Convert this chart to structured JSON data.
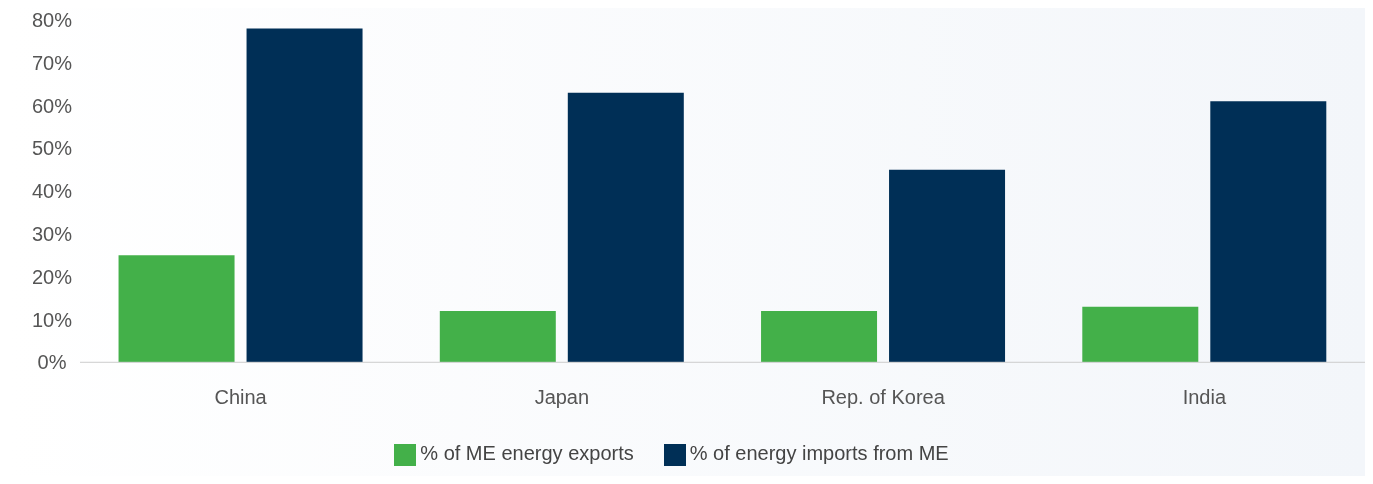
{
  "chart_data": {
    "type": "bar",
    "categories": [
      "China",
      "Japan",
      "Rep. of Korea",
      "India"
    ],
    "series": [
      {
        "name": "% of ME energy exports",
        "color": "#43b049",
        "values": [
          25,
          12,
          12,
          13
        ]
      },
      {
        "name": "% of energy imports from ME",
        "color": "#002f56",
        "values": [
          78,
          63,
          45,
          61
        ]
      }
    ],
    "ylim": [
      0,
      80
    ],
    "yticks": [
      {
        "value": 0,
        "label": "0%"
      },
      {
        "value": 10,
        "label": "10%"
      },
      {
        "value": 20,
        "label": "20%"
      },
      {
        "value": 30,
        "label": "30%"
      },
      {
        "value": 40,
        "label": "40%"
      },
      {
        "value": 50,
        "label": "50%"
      },
      {
        "value": 60,
        "label": "60%"
      },
      {
        "value": 70,
        "label": "70%"
      },
      {
        "value": 80,
        "label": "80%"
      }
    ],
    "grid": false,
    "legend": "bottom"
  }
}
